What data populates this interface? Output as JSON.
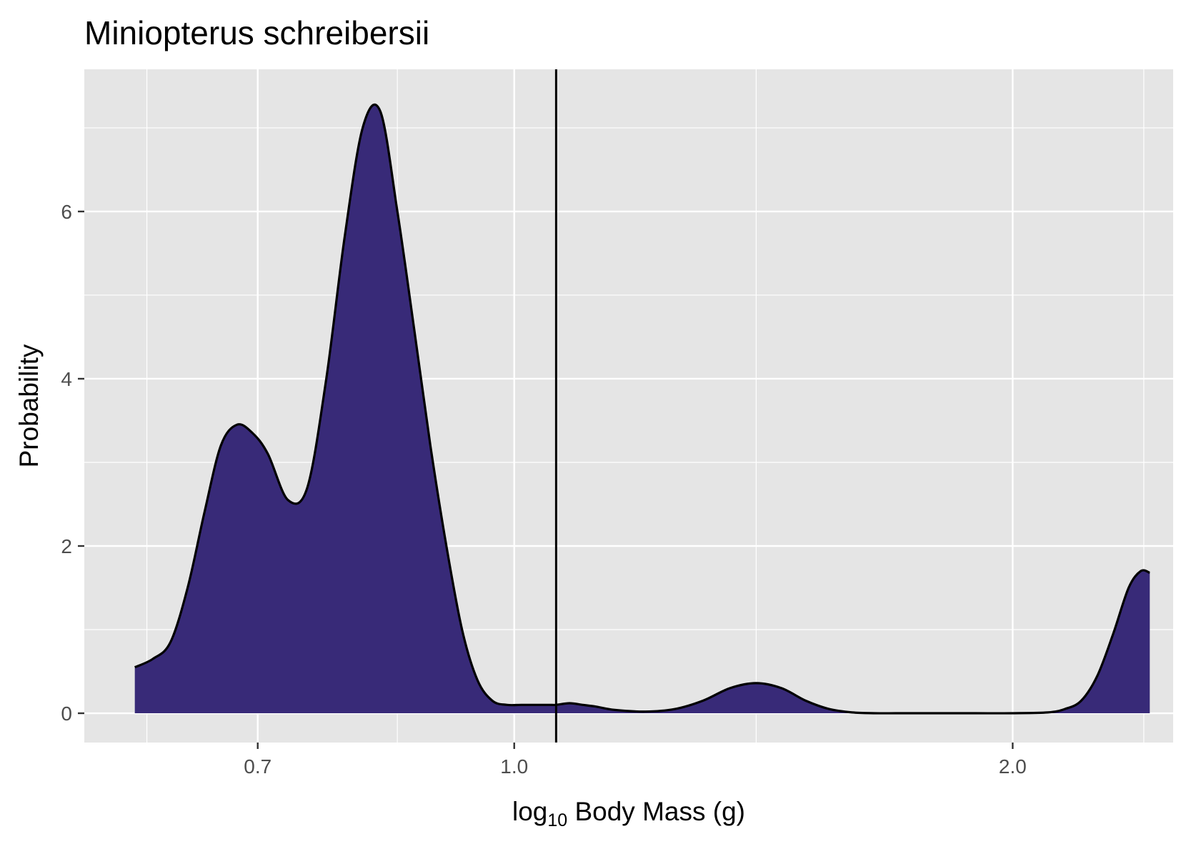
{
  "chart_data": {
    "type": "area",
    "title": "Miniopterus schreibersii",
    "xlabel": {
      "prefix": "log",
      "subscript": "10",
      "main": "Body Mass",
      "unit_open": "(",
      "unit": "g",
      "unit_close": ")"
    },
    "ylabel": "Probability",
    "x_scale": "log10",
    "xlim": [
      0.55,
      2.5
    ],
    "ylim": [
      -0.35,
      7.7
    ],
    "x_ticks": [
      {
        "value": 0.7,
        "label": "0.7"
      },
      {
        "value": 1.0,
        "label": "1.0"
      },
      {
        "value": 2.0,
        "label": "2.0"
      }
    ],
    "x_minor_grid": [
      0.6,
      0.85,
      1.4,
      2.4
    ],
    "y_ticks": [
      {
        "value": 0,
        "label": "0"
      },
      {
        "value": 2,
        "label": "2"
      },
      {
        "value": 4,
        "label": "4"
      },
      {
        "value": 6,
        "label": "6"
      }
    ],
    "y_minor_grid": [
      1,
      3,
      5,
      7
    ],
    "vline": {
      "x": 1.06
    },
    "grid": true,
    "legend": "none",
    "colors": {
      "fill": "#382a78",
      "line": "#000000",
      "panel": "#e5e5e5",
      "grid": "#ffffff"
    },
    "series": [
      {
        "x": [
          0.59,
          0.605,
          0.62,
          0.635,
          0.65,
          0.665,
          0.68,
          0.695,
          0.71,
          0.73,
          0.75,
          0.77,
          0.79,
          0.81,
          0.83,
          0.85,
          0.87,
          0.89,
          0.91,
          0.93,
          0.95,
          0.97,
          0.99,
          1.01,
          1.03,
          1.05,
          1.06,
          1.08,
          1.1,
          1.12,
          1.15,
          1.2,
          1.25,
          1.3,
          1.35,
          1.4,
          1.45,
          1.5,
          1.55,
          1.6,
          1.65,
          1.7,
          1.75,
          1.8,
          1.9,
          2.0,
          2.1,
          2.15,
          2.2,
          2.25,
          2.3,
          2.35,
          2.39,
          2.42
        ],
        "y": [
          0.55,
          0.65,
          0.85,
          1.5,
          2.4,
          3.2,
          3.45,
          3.35,
          3.1,
          2.55,
          2.7,
          4.0,
          5.7,
          7.0,
          7.2,
          6.0,
          4.6,
          3.2,
          2.0,
          1.0,
          0.4,
          0.15,
          0.1,
          0.1,
          0.1,
          0.1,
          0.1,
          0.12,
          0.1,
          0.08,
          0.04,
          0.02,
          0.05,
          0.15,
          0.3,
          0.36,
          0.3,
          0.15,
          0.05,
          0.01,
          0.0,
          0.0,
          0.0,
          0.0,
          0.0,
          0.0,
          0.01,
          0.05,
          0.15,
          0.45,
          0.95,
          1.5,
          1.7,
          1.68
        ]
      }
    ]
  }
}
